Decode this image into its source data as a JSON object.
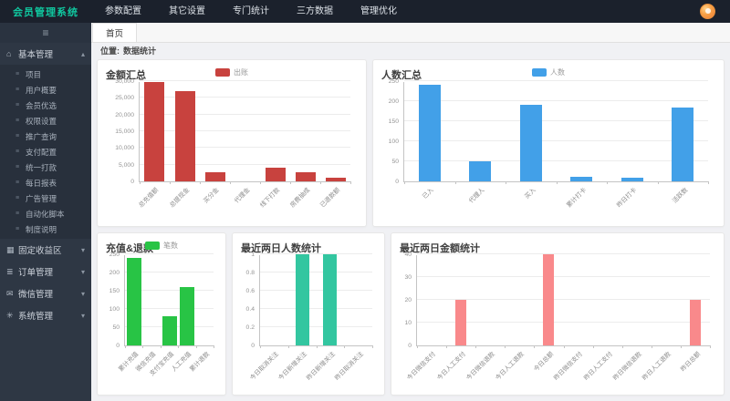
{
  "app_title": "会员管理系统",
  "header": {
    "nav": [
      "参数配置",
      "其它设置",
      "专门统计",
      "三方数据",
      "管理优化"
    ]
  },
  "tabs": {
    "active": "首页"
  },
  "breadcrumb": {
    "label": "位置:",
    "value": "数据统计"
  },
  "sidebar": {
    "sections": [
      {
        "label": "基本管理",
        "icon": "home-icon",
        "expanded": true,
        "items": [
          "项目",
          "用户概要",
          "会员优选",
          "权限设置",
          "推广查询",
          "支付配置",
          "统一打款",
          "每日报表",
          "广告管理",
          "自动化脚本",
          "制度说明"
        ]
      },
      {
        "label": "固定收益区",
        "icon": "grid-icon",
        "expanded": false,
        "items": []
      },
      {
        "label": "订单管理",
        "icon": "order-icon",
        "expanded": false,
        "items": []
      },
      {
        "label": "微信管理",
        "icon": "wechat-icon",
        "expanded": false,
        "items": []
      },
      {
        "label": "系统管理",
        "icon": "system-icon",
        "expanded": false,
        "items": []
      }
    ]
  },
  "colors": {
    "brand_green": "#10c8a0",
    "chart_red": "#c8423e",
    "chart_blue": "#42a0e8",
    "chart_green": "#28c445",
    "chart_teal": "#33c6a0",
    "chart_pink": "#f9898b"
  },
  "chart_data": [
    {
      "type": "bar",
      "title": "金额汇总",
      "legend": "出账",
      "color": "#c8423e",
      "categories": [
        "总充值额",
        "总提现金",
        "买分金",
        "代理金",
        "线下打款",
        "房费抽成",
        "已退款额"
      ],
      "values": [
        29800,
        27000,
        2700,
        0,
        4200,
        2800,
        1000
      ],
      "xlabel": "",
      "ylabel": "",
      "ylim": [
        0,
        30000
      ],
      "grid": true,
      "legend_position": "top-center",
      "yticks": [
        "0",
        "5,000",
        "10,000",
        "15,000",
        "20,000",
        "25,000",
        "30,000"
      ]
    },
    {
      "type": "bar",
      "title": "人数汇总",
      "legend": "人数",
      "color": "#42a0e8",
      "categories": [
        "已入",
        "代理人",
        "买入",
        "累计打卡",
        "昨日打卡",
        "活跃数"
      ],
      "values": [
        240,
        50,
        192,
        12,
        10,
        185
      ],
      "xlabel": "",
      "ylabel": "",
      "ylim": [
        0,
        250
      ],
      "grid": true,
      "legend_position": "top-center",
      "yticks": [
        "0",
        "50",
        "100",
        "150",
        "200",
        "250"
      ]
    },
    {
      "type": "bar",
      "title": "充值&退款",
      "legend": "笔数",
      "color": "#28c445",
      "categories": [
        "累计充值",
        "微信充值",
        "支付宝充值",
        "人工充值",
        "累计退款"
      ],
      "values": [
        240,
        0,
        80,
        160,
        0
      ],
      "xlabel": "",
      "ylabel": "",
      "ylim": [
        0,
        250
      ],
      "grid": true,
      "legend_position": "top-center",
      "yticks": [
        "0",
        "50",
        "100",
        "150",
        "200",
        "250"
      ]
    },
    {
      "type": "bar",
      "title": "最近两日人数统计",
      "legend": null,
      "color": "#33c6a0",
      "categories": [
        "今日取消关注",
        "今日新增关注",
        "昨日新增关注",
        "昨日取消关注"
      ],
      "values": [
        0,
        1,
        1,
        0
      ],
      "xlabel": "",
      "ylabel": "",
      "ylim": [
        0,
        1
      ],
      "grid": true,
      "yticks": [
        "0",
        "0.2",
        "0.4",
        "0.6",
        "0.8",
        "1"
      ]
    },
    {
      "type": "bar",
      "title": "最近两日金额统计",
      "legend": null,
      "color": "#f9898b",
      "categories": [
        "今日微信支付",
        "今日人工支付",
        "今日微信退款",
        "今日人工退款",
        "今日总额",
        "昨日微信支付",
        "昨日人工支付",
        "昨日微信退款",
        "昨日人工退款",
        "昨日总额"
      ],
      "values": [
        0,
        20,
        0,
        0,
        40,
        0,
        0,
        0,
        0,
        20
      ],
      "xlabel": "",
      "ylabel": "",
      "ylim": [
        0,
        40
      ],
      "grid": true,
      "yticks": [
        "0",
        "10",
        "20",
        "30",
        "40"
      ]
    }
  ]
}
